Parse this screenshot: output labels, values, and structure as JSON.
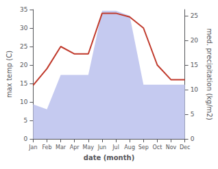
{
  "chart_data": {
    "type": "line",
    "categories": [
      "Jan",
      "Feb",
      "Mar",
      "Apr",
      "May",
      "Jun",
      "Jul",
      "Aug",
      "Sep",
      "Oct",
      "Nov",
      "Dec"
    ],
    "series": [
      {
        "type": "area",
        "color": "#c5caf0",
        "axis": "y2",
        "values": [
          7.0,
          6.0,
          13.0,
          13.0,
          13.0,
          26.0,
          26.0,
          25.0,
          11.0,
          11.0,
          11.0,
          11.0
        ]
      },
      {
        "type": "line",
        "color": "#c0392b",
        "values": [
          14.5,
          19.0,
          25.0,
          23.0,
          23.0,
          34.0,
          34.0,
          33.0,
          30.0,
          20.0,
          16.0,
          16.0
        ]
      }
    ],
    "xlabel": "date (month)",
    "ylabel": "max temp (C)",
    "y2label": "med. precipitation (kg/m2)",
    "ylim": [
      0,
      35
    ],
    "yticks": [
      0,
      5,
      10,
      15,
      20,
      25,
      30,
      35
    ],
    "y2lim": [
      0,
      26.25
    ],
    "y2ticks": [
      0,
      5,
      10,
      15,
      20,
      25
    ],
    "grid": false
  }
}
